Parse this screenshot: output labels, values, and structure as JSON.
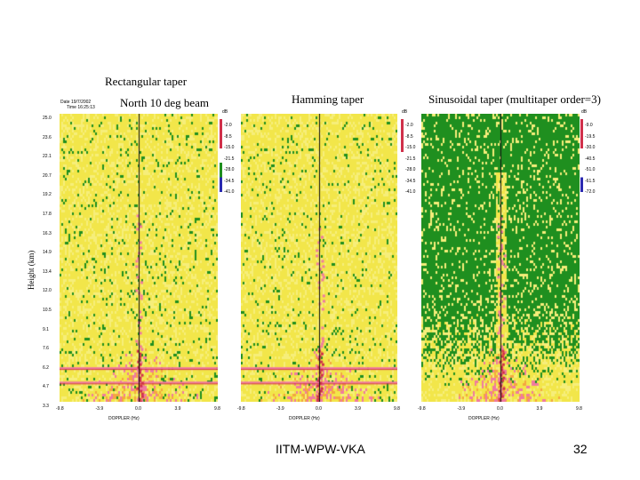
{
  "slide": {
    "page_number": "32",
    "footer": "IITM-WPW-VKA",
    "ylabel": "Height (km)",
    "date_text": "Date 19/7/2002",
    "time_text": "Time 16:25:13",
    "beam_text": "North 10 deg beam",
    "unit_label": "dB"
  },
  "panels": [
    {
      "title": "Rectangular taper",
      "xlabel": "DOPPLER (Hz)",
      "x_ticks": [
        "-9.8",
        "-3.9",
        "0.0",
        "3.9",
        "9.8"
      ],
      "cbar_ticks": [
        "-2.0",
        "-8.5",
        "-15.0",
        "-21.5",
        "-28.0",
        "-34.5",
        "-41.0"
      ],
      "green_density": 0.06
    },
    {
      "title": "Hamming taper",
      "xlabel": "DOPPLER (Hz)",
      "x_ticks": [
        "-9.8",
        "-3.9",
        "0.0",
        "3.9",
        "9.8"
      ],
      "cbar_ticks": [
        "-2.0",
        "-8.5",
        "-15.0",
        "-21.5",
        "-28.0",
        "-34.5",
        "-41.0"
      ],
      "green_density": 0.05
    },
    {
      "title": "Sinusoidal taper (multitaper order=3)",
      "xlabel": "DOPPLER (Hz)",
      "x_ticks": [
        "-9.8",
        "-3.9",
        "0.0",
        "3.9",
        "9.8"
      ],
      "cbar_ticks": [
        "-9.0",
        "-19.5",
        "-30.0",
        "-40.5",
        "-51.0",
        "-61.5",
        "-72.0"
      ],
      "green_density": 0.85
    }
  ],
  "y_ticks": [
    "25.0",
    "23.6",
    "22.1",
    "20.7",
    "19.2",
    "17.8",
    "16.3",
    "14.9",
    "13.4",
    "12.0",
    "10.5",
    "9.1",
    "7.6",
    "6.2",
    "4.7",
    "3.3"
  ],
  "colors": {
    "yellow": "#f2e64a",
    "light_yellow": "#f6ee7a",
    "green": "#1f8f1f",
    "pink": "#f07aa0",
    "orange": "#f4a640",
    "red": "#d0304a",
    "dark": "#111111"
  }
}
